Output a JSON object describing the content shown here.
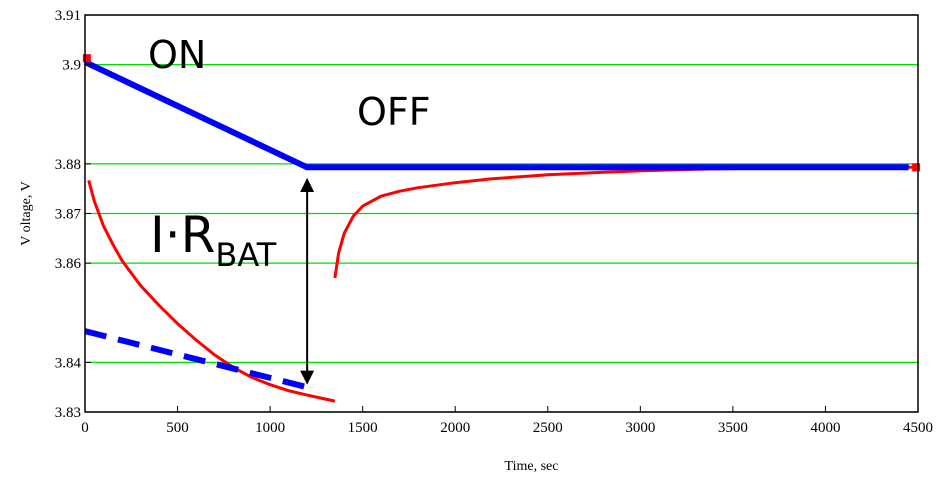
{
  "chart_data": {
    "type": "line",
    "xlabel": "Time, sec",
    "ylabel": "V oltage, V",
    "xlim": [
      0,
      4500
    ],
    "ylim": [
      3.83,
      3.91
    ],
    "x_ticks": [
      "0",
      "500",
      "1000",
      "1500",
      "2000",
      "2500",
      "3000",
      "3500",
      "4000",
      "4500"
    ],
    "x_tick_values": [
      0,
      500,
      1000,
      1500,
      2000,
      2500,
      3000,
      3500,
      4000,
      4500
    ],
    "y_ticks": [
      "3.83",
      "3.84",
      "3.86",
      "3.87",
      "3.88",
      "3.9",
      "3.91"
    ],
    "y_tick_values": [
      3.83,
      3.84,
      3.86,
      3.87,
      3.88,
      3.9,
      3.91
    ],
    "grid": true,
    "colors": {
      "measured": "#ff0000",
      "model": "#0000ff",
      "grid": "#00dd00",
      "arrow": "#000000"
    },
    "series": [
      {
        "style": "measured-on",
        "x": [
          20,
          50,
          100,
          150,
          200,
          300,
          400,
          500,
          600,
          700,
          800,
          900,
          1000,
          1100,
          1200,
          1300,
          1350
        ],
        "y": [
          3.8767,
          3.8725,
          3.8675,
          3.8638,
          3.8605,
          3.8555,
          3.8515,
          3.8478,
          3.8445,
          3.8415,
          3.839,
          3.837,
          3.8355,
          3.8343,
          3.8334,
          3.8326,
          3.8322
        ]
      },
      {
        "style": "measured-off",
        "x": [
          1350,
          1370,
          1400,
          1450,
          1500,
          1600,
          1700,
          1800,
          2000,
          2200,
          2500,
          2800,
          3000,
          3300,
          3600,
          3800,
          4000,
          4200,
          4500
        ],
        "y": [
          3.857,
          3.862,
          3.866,
          3.8695,
          3.8715,
          3.8735,
          3.8745,
          3.8752,
          3.8762,
          3.877,
          3.8778,
          3.8783,
          3.8786,
          3.8789,
          3.8791,
          3.8792,
          3.8793,
          3.8793,
          3.8793
        ]
      },
      {
        "style": "model-solid",
        "x": [
          0,
          1200,
          1230,
          4450
        ],
        "y": [
          3.9005,
          3.8793,
          3.8793,
          3.8793
        ]
      },
      {
        "style": "model-dashed",
        "x": [
          0,
          1200
        ],
        "y": [
          3.8463,
          3.835
        ]
      }
    ],
    "markers": [
      {
        "x": 10,
        "y": 3.9013
      },
      {
        "x": 4490,
        "y": 3.8793
      }
    ],
    "annotations": {
      "on": "ON",
      "off": "OFF",
      "ir_main": "I·R",
      "ir_sub": "BAT"
    },
    "arrow": {
      "x": 1200,
      "y_top": 3.8793,
      "y_bottom": 3.835
    }
  }
}
